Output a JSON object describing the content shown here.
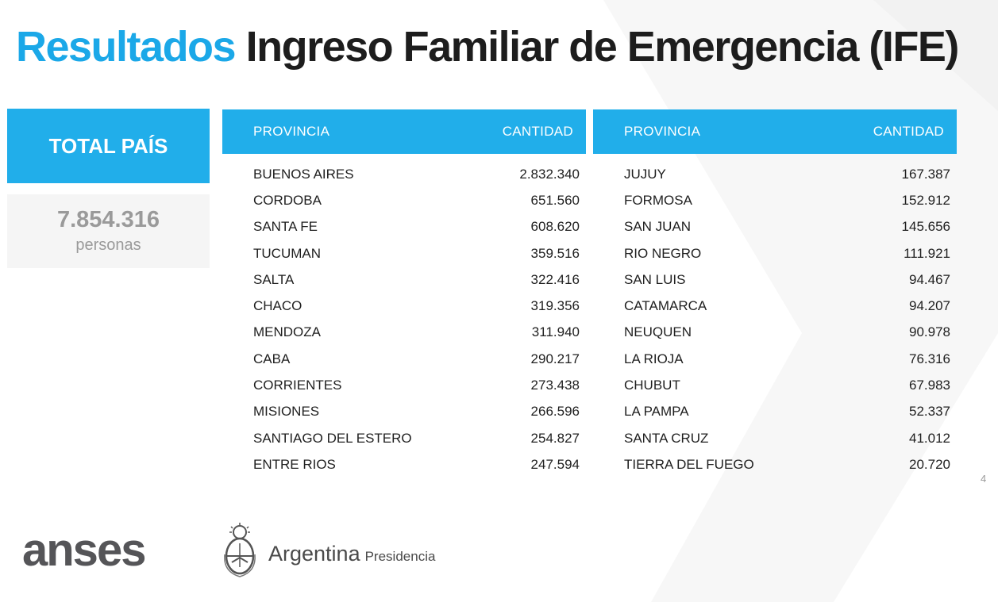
{
  "title": {
    "highlight": "Resultados",
    "rest": "Ingreso Familiar de Emergencia (IFE)"
  },
  "total": {
    "label": "TOTAL PAÍS",
    "value": "7.854.316",
    "unit": "personas"
  },
  "table_left": {
    "col1": "PROVINCIA",
    "col2": "CANTIDAD",
    "rows": [
      [
        "BUENOS AIRES",
        "2.832.340"
      ],
      [
        "CORDOBA",
        "651.560"
      ],
      [
        "SANTA FE",
        "608.620"
      ],
      [
        "TUCUMAN",
        "359.516"
      ],
      [
        "SALTA",
        "322.416"
      ],
      [
        "CHACO",
        "319.356"
      ],
      [
        "MENDOZA",
        "311.940"
      ],
      [
        "CABA",
        "290.217"
      ],
      [
        "CORRIENTES",
        "273.438"
      ],
      [
        "MISIONES",
        "266.596"
      ],
      [
        "SANTIAGO DEL ESTERO",
        "254.827"
      ],
      [
        "ENTRE RIOS",
        "247.594"
      ]
    ]
  },
  "table_right": {
    "col1": "PROVINCIA",
    "col2": "CANTIDAD",
    "rows": [
      [
        "JUJUY",
        "167.387"
      ],
      [
        "FORMOSA",
        "152.912"
      ],
      [
        "SAN JUAN",
        "145.656"
      ],
      [
        "RIO NEGRO",
        "111.921"
      ],
      [
        "SAN LUIS",
        "94.467"
      ],
      [
        "CATAMARCA",
        "94.207"
      ],
      [
        "NEUQUEN",
        "90.978"
      ],
      [
        "LA RIOJA",
        "76.316"
      ],
      [
        "CHUBUT",
        "67.983"
      ],
      [
        "LA PAMPA",
        "52.337"
      ],
      [
        "SANTA CRUZ",
        "41.012"
      ],
      [
        "TIERRA DEL FUEGO",
        "20.720"
      ]
    ]
  },
  "page_number": "4",
  "footer": {
    "anses": "anses",
    "argentina": "Argentina",
    "presidencia": "Presidencia"
  },
  "colors": {
    "accent": "#21aeea",
    "title_dark": "#1d1d1d",
    "logo_gray": "#555558"
  },
  "icons": {
    "seal": "coat-of-arms-icon"
  }
}
